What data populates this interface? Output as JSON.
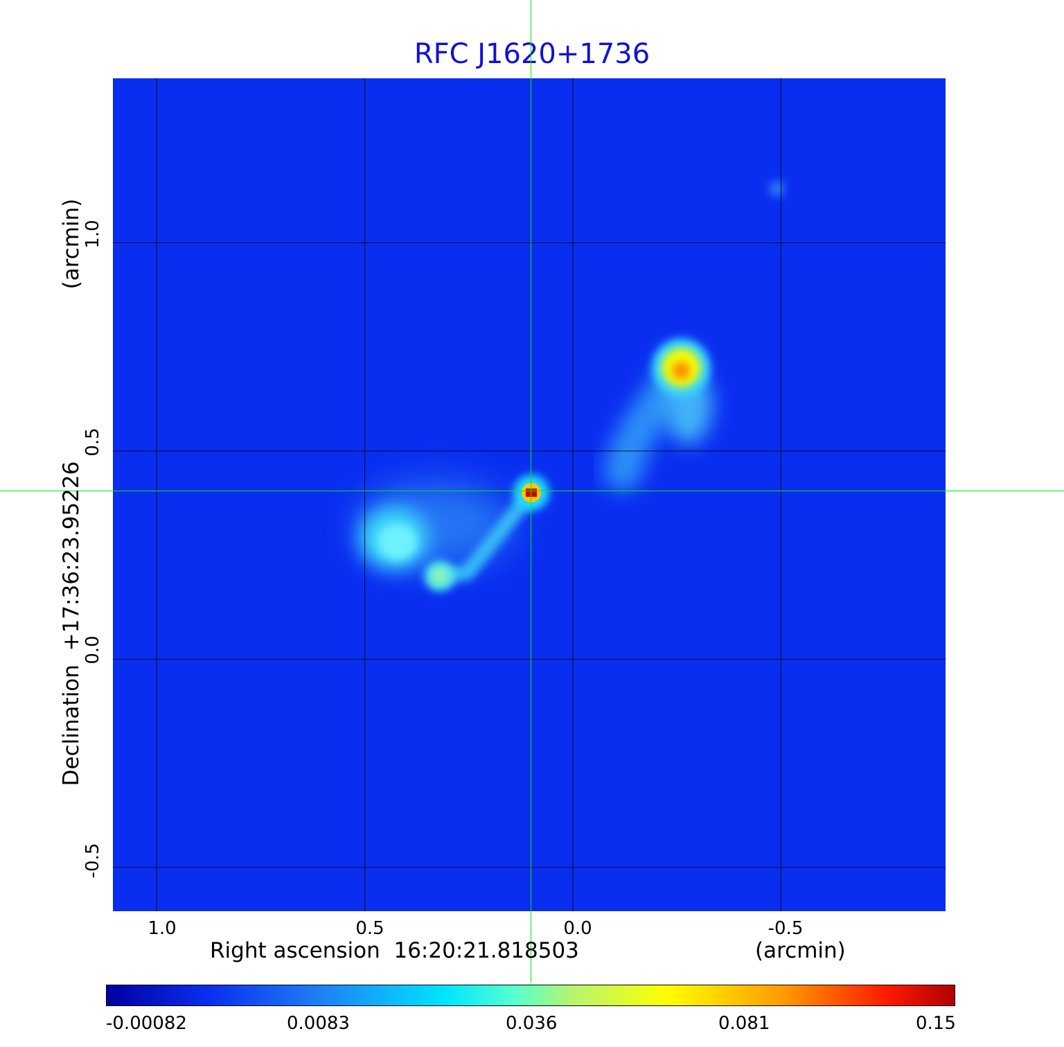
{
  "chart_data": {
    "type": "heatmap",
    "title": "RFC J1620+1736",
    "xlabel": "Right ascension  16:20:21.818503",
    "xunit": "(arcmin)",
    "ylabel": "Declination  +17:36:23.95226",
    "yunit": "(arcmin)",
    "xlim": [
      1.105,
      -0.895
    ],
    "ylim": [
      -0.605,
      1.395
    ],
    "x_ticks": [
      "1.0",
      "0.5",
      "0.0",
      "-0.5"
    ],
    "y_ticks": [
      "1.0",
      "0.5",
      "0.0",
      "-0.5"
    ],
    "grid": true,
    "crosshair": {
      "x": 0.1,
      "y": 0.4
    },
    "colorbar": {
      "ticks": [
        "-0.00082",
        "0.0083",
        "0.036",
        "0.081",
        "0.15"
      ],
      "colormap": "jet"
    },
    "features": [
      {
        "x": 0.1,
        "y": 0.4,
        "peak": 0.15
      },
      {
        "x": -0.26,
        "y": 0.7,
        "peak": 0.1
      },
      {
        "x": 0.43,
        "y": 0.29,
        "peak": 0.025
      },
      {
        "x": 0.32,
        "y": 0.2,
        "peak": 0.035
      },
      {
        "x": -0.49,
        "y": 1.13,
        "peak": 0.008
      }
    ]
  }
}
